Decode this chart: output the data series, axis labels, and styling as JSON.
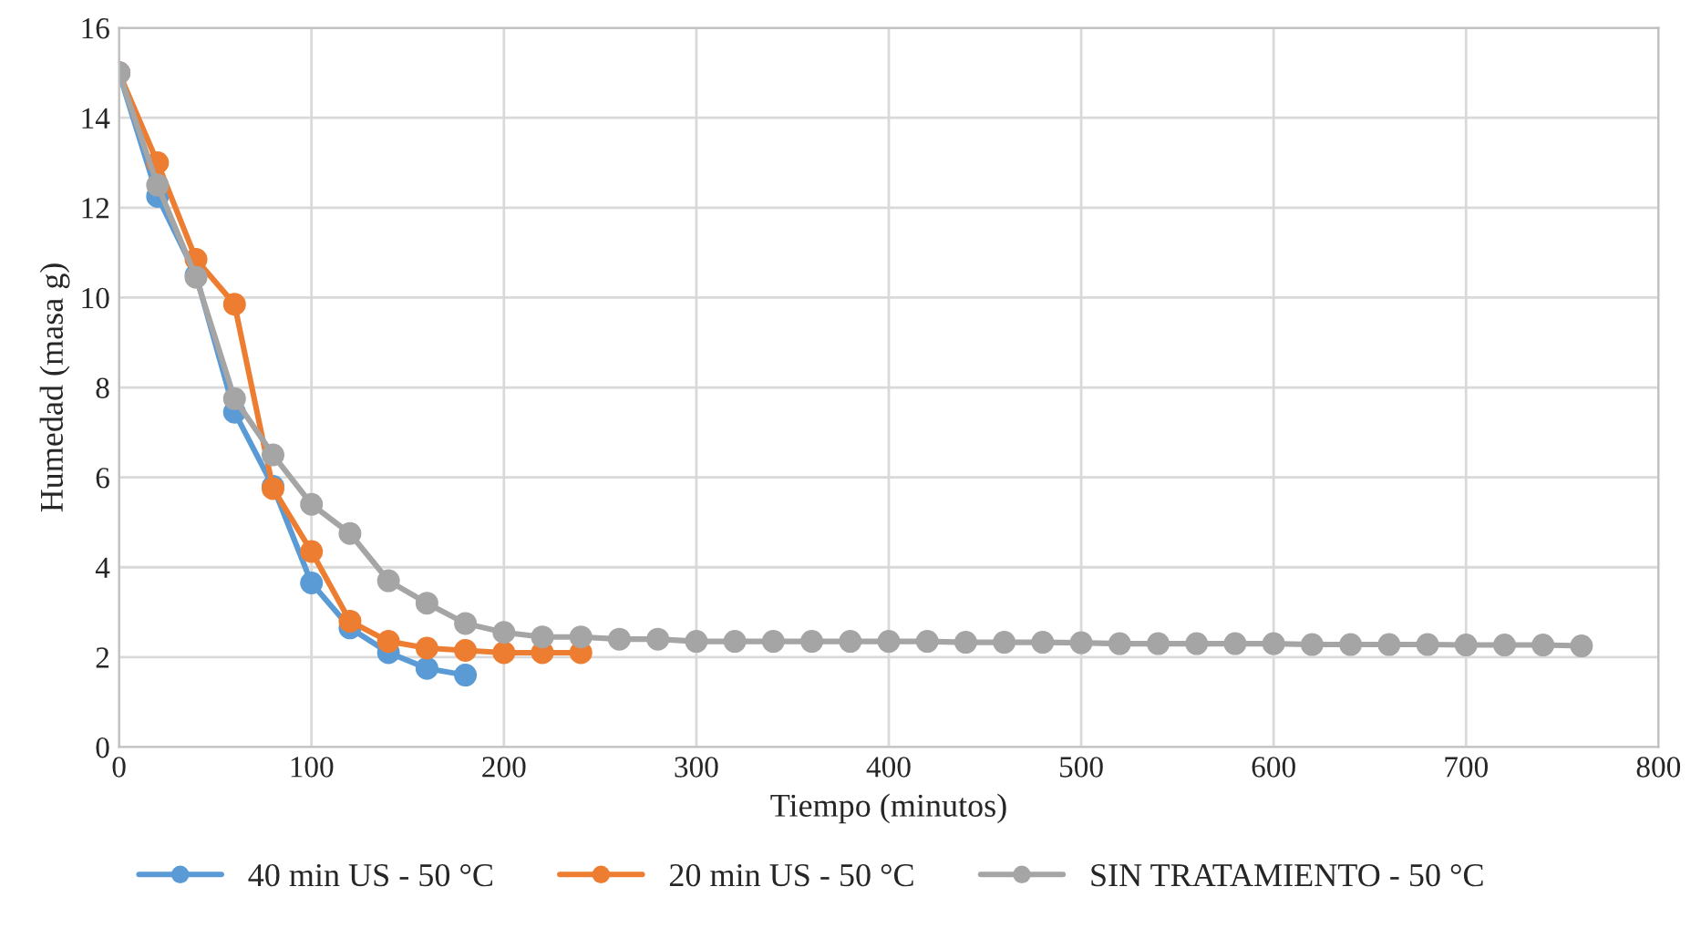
{
  "chart_data": {
    "type": "line",
    "xlabel": "Tiempo (minutos)",
    "ylabel": "Humedad (masa g)",
    "xlim": [
      0,
      800
    ],
    "xticks": [
      0,
      100,
      200,
      300,
      400,
      500,
      600,
      700,
      800
    ],
    "ylim": [
      0,
      16
    ],
    "yticks": [
      0,
      2,
      4,
      6,
      8,
      10,
      12,
      14,
      16
    ],
    "grid": true,
    "legend": "bottom",
    "marker": "circle",
    "line_style": "solid",
    "series": [
      {
        "name": "40 min US - 50 °C",
        "color": "#5b9bd5",
        "x": [
          0,
          20,
          40,
          60,
          80,
          100,
          120,
          140,
          160,
          180
        ],
        "values": [
          15,
          12.25,
          10.5,
          7.45,
          5.8,
          3.65,
          2.65,
          2.1,
          1.75,
          1.6
        ]
      },
      {
        "name": "20 min US - 50 °C",
        "color": "#ed7d31",
        "x": [
          0,
          20,
          40,
          60,
          80,
          100,
          120,
          140,
          160,
          180,
          200,
          220,
          240
        ],
        "values": [
          15,
          13,
          10.85,
          9.85,
          5.75,
          4.35,
          2.8,
          2.35,
          2.2,
          2.15,
          2.1,
          2.1,
          2.1
        ]
      },
      {
        "name": "SIN TRATAMIENTO - 50 °C",
        "color": "#a5a5a5",
        "x": [
          0,
          20,
          40,
          60,
          80,
          100,
          120,
          140,
          160,
          180,
          200,
          220,
          240,
          260,
          280,
          300,
          320,
          340,
          360,
          380,
          400,
          420,
          440,
          460,
          480,
          500,
          520,
          540,
          560,
          580,
          600,
          620,
          640,
          660,
          680,
          700,
          720,
          740,
          760
        ],
        "values": [
          15,
          12.5,
          10.45,
          7.75,
          6.5,
          5.4,
          4.75,
          3.7,
          3.2,
          2.75,
          2.55,
          2.45,
          2.45,
          2.4,
          2.4,
          2.35,
          2.35,
          2.35,
          2.35,
          2.35,
          2.35,
          2.35,
          2.33,
          2.33,
          2.33,
          2.32,
          2.3,
          2.3,
          2.3,
          2.3,
          2.3,
          2.28,
          2.28,
          2.28,
          2.28,
          2.27,
          2.27,
          2.27,
          2.25
        ]
      }
    ]
  }
}
